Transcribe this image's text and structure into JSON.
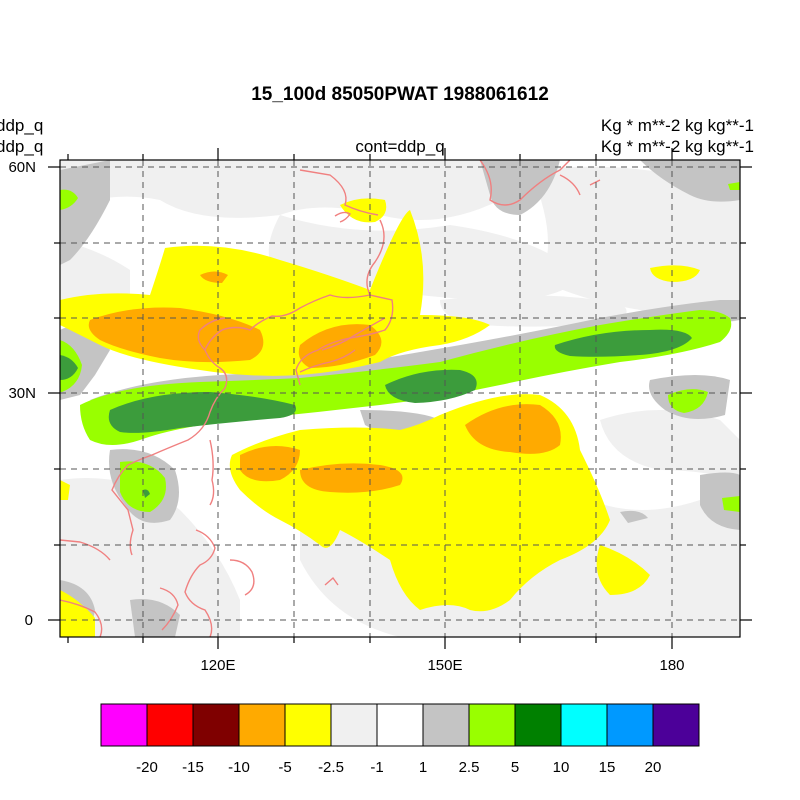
{
  "header": {
    "title": "15_100d 85050PWAT  1988061612",
    "left_line1": "ddp_q",
    "left_line2": "ddp_q",
    "center_subtitle": "cont=ddp_q",
    "right_line1": "Kg  * m**-2 kg kg**-1",
    "right_line2": "Kg  * m**-2 kg kg**-1"
  },
  "map": {
    "lat_labels": [
      "60N",
      "30N",
      "0"
    ],
    "lon_labels": [
      "120E",
      "150E",
      "180"
    ],
    "coastline_color": "#f08080"
  },
  "colorbar": {
    "colors": [
      "#ff00ff",
      "#ff0000",
      "#7f0000",
      "#ffaa00",
      "#ffff00",
      "#f0f0f0",
      "#ffffff",
      "#c4c4c4",
      "#99ff00",
      "#008000",
      "#00ffff",
      "#0099ff",
      "#4c0099"
    ],
    "labels": [
      "-20",
      "-15",
      "-10",
      "-5",
      "-2.5",
      "-1",
      "1",
      "2.5",
      "5",
      "10",
      "15",
      "20"
    ]
  }
}
